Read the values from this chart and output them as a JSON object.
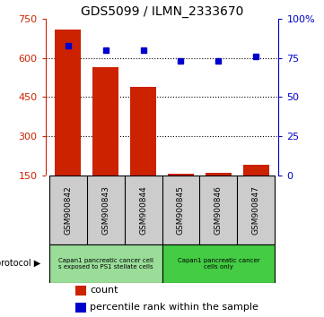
{
  "title": "GDS5099 / ILMN_2333670",
  "samples": [
    "GSM900842",
    "GSM900843",
    "GSM900844",
    "GSM900845",
    "GSM900846",
    "GSM900847"
  ],
  "counts": [
    710,
    565,
    490,
    155,
    157,
    190
  ],
  "percentile_ranks": [
    83,
    80,
    80,
    73,
    73,
    76
  ],
  "ylim_left": [
    150,
    750
  ],
  "yticks_left": [
    150,
    300,
    450,
    600,
    750
  ],
  "ylim_right": [
    0,
    100
  ],
  "yticks_right": [
    0,
    25,
    50,
    75,
    100
  ],
  "bar_color": "#cc2200",
  "dot_color": "#0000cc",
  "bg_color": "#ffffff",
  "tick_area_color": "#cccccc",
  "protocol_color_1": "#99dd99",
  "protocol_color_2": "#44cc44",
  "protocol_label_1": "Capan1 pancreatic cancer cell\ns exposed to PS1 stellate cells",
  "protocol_label_2": "Capan1 pancreatic cancer\ncells only",
  "legend_count_label": "count",
  "legend_percentile_label": "percentile rank within the sample",
  "grid_yticks": [
    300,
    450,
    600
  ]
}
